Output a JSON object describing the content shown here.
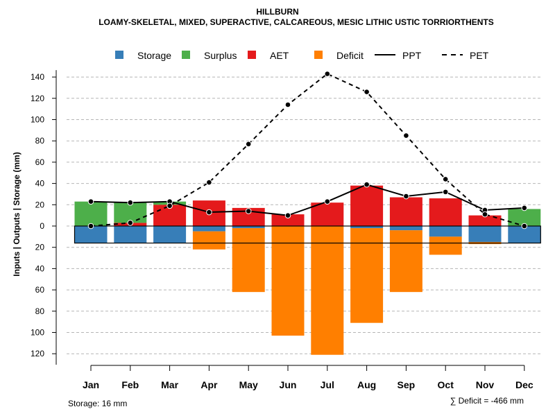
{
  "chart_data": {
    "type": "bar",
    "title": "HILLBURN",
    "subtitle": "LOAMY-SKELETAL, MIXED, SUPERACTIVE, CALCAREOUS, MESIC LITHIC USTIC TORRIORTHENTS",
    "ylabel": "Inputs | Outputs | Storage    (mm)",
    "categories": [
      "Jan",
      "Feb",
      "Mar",
      "Apr",
      "May",
      "Jun",
      "Jul",
      "Aug",
      "Sep",
      "Oct",
      "Nov",
      "Dec"
    ],
    "y_ticks": [
      140,
      120,
      100,
      80,
      60,
      40,
      20,
      0,
      -20,
      -40,
      -60,
      -80,
      -100,
      -120
    ],
    "ylim": [
      -130,
      148
    ],
    "legend_position": "top",
    "series": [
      {
        "name": "Storage",
        "kind": "bar",
        "color": "#377EB8",
        "values": [
          -16,
          -16,
          -16,
          -5,
          -2,
          0,
          0,
          -2,
          -4,
          -10,
          -15,
          -16
        ]
      },
      {
        "name": "Surplus",
        "kind": "bar",
        "color": "#4DAF4A",
        "values": [
          23,
          19,
          3,
          0,
          0,
          0,
          0,
          0,
          0,
          0,
          0,
          16
        ]
      },
      {
        "name": "AET",
        "kind": "bar",
        "color": "#E41A1C",
        "values": [
          0,
          3,
          20,
          24,
          17,
          11,
          22,
          38,
          27,
          26,
          10,
          0
        ]
      },
      {
        "name": "Deficit",
        "kind": "bar",
        "color": "#FF7F00",
        "values": [
          0,
          0,
          0,
          -17,
          -60,
          -103,
          -121,
          -89,
          -58,
          -17,
          -2,
          0
        ]
      },
      {
        "name": "PPT",
        "kind": "line",
        "style": "solid",
        "color": "#000000",
        "values": [
          23,
          22,
          23,
          13,
          14,
          10,
          23,
          39,
          28,
          32,
          15,
          17
        ]
      },
      {
        "name": "PET",
        "kind": "line",
        "style": "dashed",
        "color": "#000000",
        "values": [
          0,
          3,
          19,
          41,
          77,
          114,
          143,
          126,
          85,
          44,
          11,
          0
        ]
      }
    ],
    "footer_left": "Storage: 16 mm",
    "footer_right": "∑ Deficit = -466 mm"
  }
}
